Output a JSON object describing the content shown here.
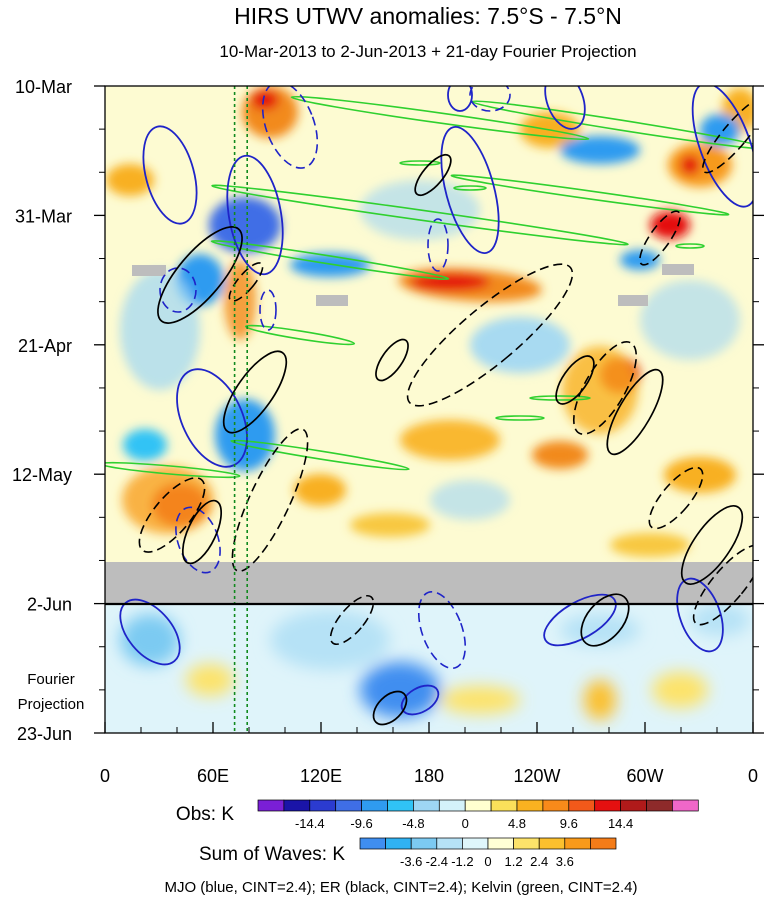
{
  "chart_data": {
    "type": "heatmap",
    "title": "HIRS UTWV anomalies: 7.5°S - 7.5°N",
    "subtitle": "10-Mar-2013 to 2-Jun-2013 + 21-day Fourier Projection",
    "x_ticks": [
      "0",
      "60E",
      "120E",
      "180",
      "120W",
      "60W",
      "0"
    ],
    "x_tick_lon": [
      0,
      60,
      120,
      180,
      240,
      300,
      360
    ],
    "y_ticks": [
      "10-Mar",
      "31-Mar",
      "21-Apr",
      "12-May",
      "2-Jun",
      "23-Jun"
    ],
    "y_tick_day": [
      0,
      21,
      42,
      63,
      84,
      105
    ],
    "projection_label": [
      "Fourier",
      "Projection"
    ],
    "projection_start_day": 84,
    "vertical_guides_lon": [
      72,
      79
    ],
    "obs_colorbar": {
      "label": "Obs: K",
      "colors": [
        "#7a1fd6",
        "#1a14a8",
        "#2b3bd0",
        "#3f6ee6",
        "#2f9bf0",
        "#30c3f5",
        "#9ed6f4",
        "#d4f2fa",
        "#ffffd0",
        "#fbe05a",
        "#f9b220",
        "#f88a1a",
        "#f2591a",
        "#e41010",
        "#b01a1a",
        "#8e2a2a",
        "#f067c8"
      ],
      "tick_labels": [
        "-14.4",
        "-9.6",
        "-4.8",
        "0",
        "4.8",
        "9.6",
        "14.4"
      ]
    },
    "waves_colorbar": {
      "label": "Sum of Waves: K",
      "colors": [
        "#3f8ef0",
        "#30b2f2",
        "#7ccaf2",
        "#b6e2f6",
        "#dff6fb",
        "#ffffd6",
        "#fde36a",
        "#fbc02e",
        "#f99a1a",
        "#f47c18"
      ],
      "tick_labels": [
        "-3.6",
        "-2.4",
        "-1.2",
        "0",
        "1.2",
        "2.4",
        "3.6"
      ]
    },
    "contour_legend": "MJO (blue, CINT=2.4); ER (black, CINT=2.4); Kelvin (green, CINT=2.4)",
    "series": [
      {
        "name": "MJO",
        "color": "#1f24c8"
      },
      {
        "name": "ER",
        "color": "#000000"
      },
      {
        "name": "Kelvin",
        "color": "#2fd02f"
      }
    ]
  }
}
